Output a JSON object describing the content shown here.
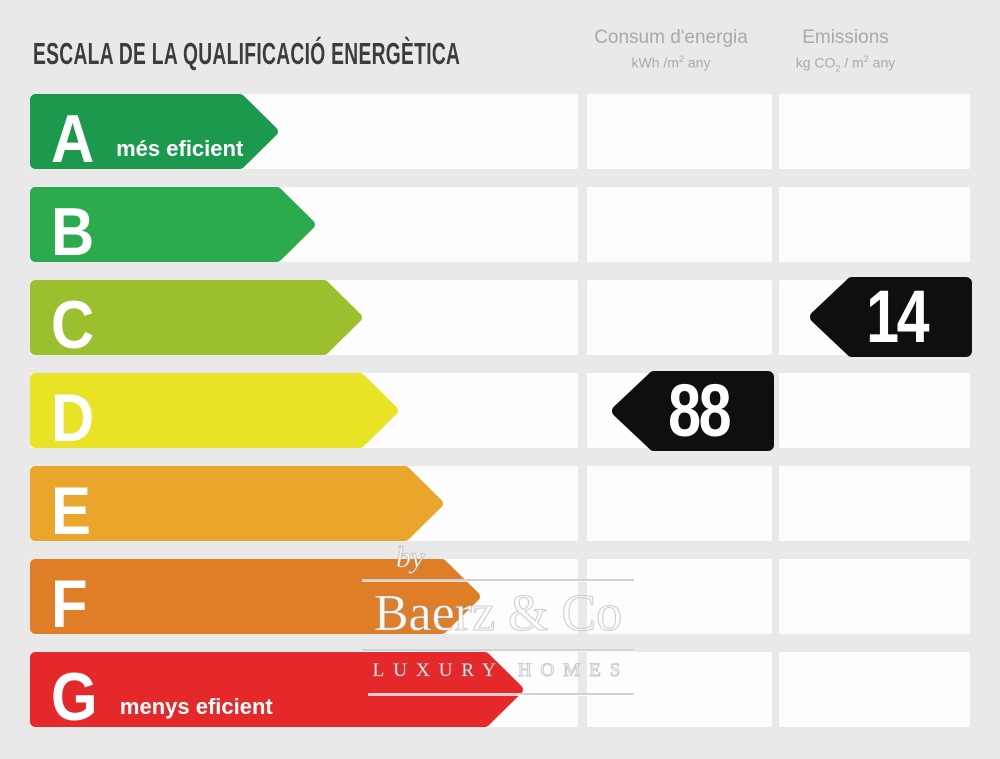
{
  "title": "ESCALA DE LA QUALIFICACIÓ ENERGÈTICA",
  "columns": {
    "consum": {
      "title": "Consum d'energia",
      "unit_a": "kWh /m",
      "unit_sup": "2",
      "unit_b": " any"
    },
    "emissions": {
      "title": "Emissions",
      "unit_a": "kg CO",
      "unit_sub": "2",
      "unit_b": " / m",
      "unit_sup": "2",
      "unit_c": " any"
    }
  },
  "scale": {
    "rows": [
      {
        "letter": "A",
        "label": "més eficient",
        "color": "#1b9a4d"
      },
      {
        "letter": "B",
        "label": "",
        "color": "#2cab4e"
      },
      {
        "letter": "C",
        "label": "",
        "color": "#9cbf2d"
      },
      {
        "letter": "D",
        "label": "",
        "color": "#e8e324"
      },
      {
        "letter": "E",
        "label": "",
        "color": "#e9a62a"
      },
      {
        "letter": "F",
        "label": "",
        "color": "#e07e28"
      },
      {
        "letter": "G",
        "label": "menys eficient",
        "color": "#e52829"
      }
    ]
  },
  "indicators": {
    "consum": {
      "value": "88",
      "row": "D"
    },
    "emissions": {
      "value": "14",
      "row": "C"
    }
  },
  "watermark": {
    "by": "by",
    "name": "Baerz & Co",
    "tagline": "LUXURY HOMES"
  },
  "colors": {
    "background": "#e9e9e9",
    "cell": "#fdfdfd",
    "indicator": "#0f0f0f",
    "title_text": "#3c3c3c",
    "header_text": "#a9a9a9"
  },
  "chart_data": {
    "type": "bar",
    "title": "ESCALA DE LA QUALIFICACIÓ ENERGÈTICA",
    "categories": [
      "A",
      "B",
      "C",
      "D",
      "E",
      "F",
      "G"
    ],
    "annotations": {
      "A": "més eficient",
      "G": "menys eficient"
    },
    "series": [
      {
        "name": "Consum d'energia (kWh/m2 any)",
        "rating_row": "D",
        "value": 88
      },
      {
        "name": "Emissions (kg CO2/m2 any)",
        "rating_row": "C",
        "value": 14
      }
    ],
    "legend_position": "top",
    "grid": false
  }
}
